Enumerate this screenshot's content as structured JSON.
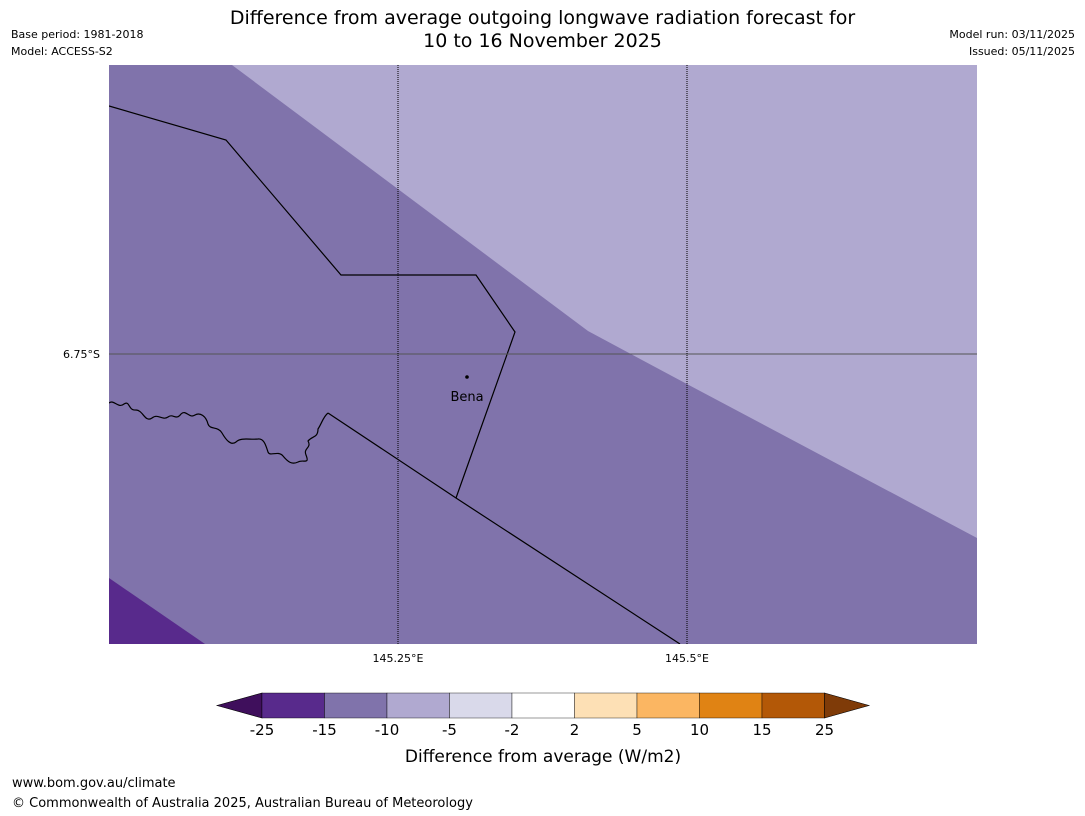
{
  "header": {
    "title_line1": "Difference from average outgoing longwave radiation forecast for",
    "title_line2": "10 to 16 November 2025",
    "base_period": "Base period: 1981-2018",
    "model": "Model: ACCESS-S2",
    "model_run": "Model run: 03/11/2025",
    "issued": "Issued: 05/11/2025"
  },
  "map": {
    "lat_labels": [
      "6.75°S"
    ],
    "lon_labels": [
      "145.25°E",
      "145.5°E"
    ],
    "places": [
      {
        "name": "Bena"
      }
    ]
  },
  "colorbar": {
    "label": "Difference from average (W/m2)",
    "ticks": [
      "-25",
      "-15",
      "-10",
      "-5",
      "-2",
      "2",
      "5",
      "10",
      "15",
      "25"
    ],
    "colors": [
      "#3f0f5c",
      "#582a8c",
      "#8073ab",
      "#b0a9d0",
      "#d9d9ea",
      "#ffffff",
      "#fde0b5",
      "#fbb662",
      "#e08314",
      "#b35807",
      "#7f3b08"
    ]
  },
  "footer": {
    "url": "www.bom.gov.au/climate",
    "copyright": "© Commonwealth of Australia 2025, Australian Bureau of Meteorology"
  }
}
